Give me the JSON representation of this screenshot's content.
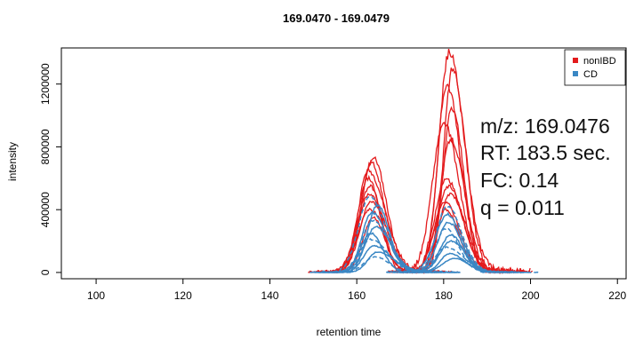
{
  "chart_data": {
    "type": "line",
    "title": "169.0470 - 169.0479",
    "xlabel": "retention time",
    "ylabel": "intensity",
    "xlim": [
      92,
      222
    ],
    "ylim": [
      -40000,
      1430000
    ],
    "x_ticks": [
      100,
      120,
      140,
      160,
      180,
      200,
      220
    ],
    "y_ticks": [
      0,
      400000,
      800000,
      1200000
    ],
    "grid": false,
    "legend": {
      "position": "top-right"
    },
    "series": [
      {
        "name": "nonIBD",
        "color": "#e31a1c",
        "peaks": [
          {
            "rt": 163.5,
            "heights": [
              730000,
              700000,
              650000,
              600000,
              550000,
              500000,
              450000,
              400000,
              350000
            ]
          },
          {
            "rt": 181.0,
            "heights": [
              1400000,
              1300000,
              1200000,
              1050000,
              950000,
              850000,
              600000,
              550000,
              500000,
              450000,
              400000
            ]
          }
        ]
      },
      {
        "name": "CD",
        "color": "#3a87c4",
        "peaks": [
          {
            "rt": 164.0,
            "heights": [
              480000,
              430000,
              380000,
              330000,
              290000,
              250000,
              210000,
              170000,
              130000,
              100000
            ]
          },
          {
            "rt": 181.5,
            "heights": [
              420000,
              370000,
              320000,
              280000,
              240000,
              200000,
              160000,
              120000,
              90000
            ]
          }
        ]
      }
    ],
    "annotations": [
      "m/z: 169.0476",
      "RT: 183.5 sec.",
      "FC: 0.14",
      "q = 0.011"
    ]
  }
}
